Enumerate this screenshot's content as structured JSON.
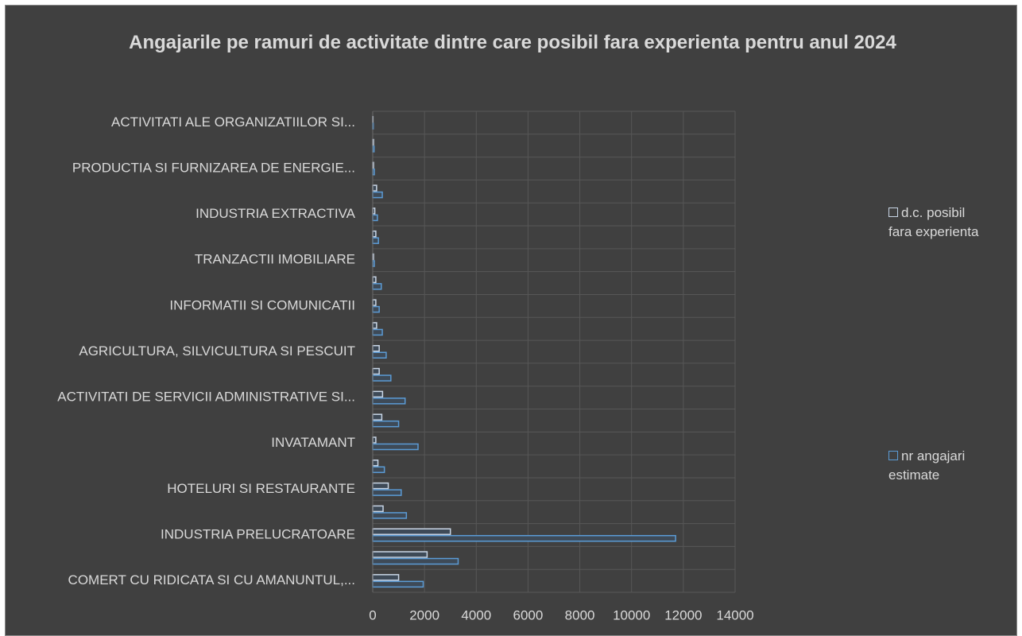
{
  "chart_data": {
    "type": "bar",
    "orientation": "horizontal",
    "title": "Angajarile pe ramuri de activitate dintre care posibil fara experienta pentru anul 2024",
    "categories": [
      "COMERT CU RIDICATA SI CU AMANUNTUL,...",
      null,
      "INDUSTRIA PRELUCRATOARE",
      null,
      "HOTELURI SI RESTAURANTE",
      null,
      "INVATAMANT",
      null,
      "ACTIVITATI DE SERVICII ADMINISTRATIVE SI...",
      null,
      "AGRICULTURA, SILVICULTURA SI PESCUIT",
      null,
      "INFORMATII SI COMUNICATII",
      null,
      "TRANZACTII IMOBILIARE",
      null,
      "INDUSTRIA EXTRACTIVA",
      null,
      "PRODUCTIA SI FURNIZAREA DE ENERGIE...",
      null,
      "ACTIVITATI ALE ORGANIZATIILOR SI..."
    ],
    "series": [
      {
        "name": "d.c. posibil fara experienta",
        "color": "#c9d6e6",
        "values": [
          1000,
          2100,
          3000,
          400,
          600,
          200,
          120,
          350,
          380,
          250,
          250,
          150,
          120,
          120,
          30,
          120,
          80,
          150,
          30,
          30,
          10
        ]
      },
      {
        "name": "nr angajari estimate",
        "color": "#5b9bd5",
        "values": [
          1950,
          3300,
          11700,
          1300,
          1100,
          450,
          1750,
          1000,
          1250,
          700,
          520,
          370,
          250,
          330,
          60,
          220,
          180,
          370,
          60,
          50,
          20
        ]
      }
    ],
    "xlim": [
      0,
      14000
    ],
    "xticks": [
      0,
      2000,
      4000,
      6000,
      8000,
      10000,
      12000,
      14000
    ],
    "grid": true,
    "legend": "right"
  }
}
